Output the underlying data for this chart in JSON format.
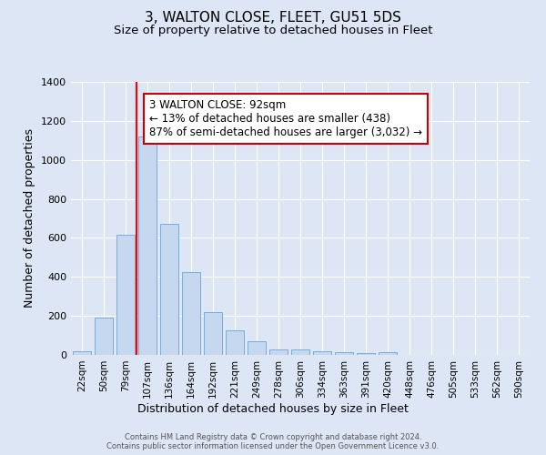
{
  "title": "3, WALTON CLOSE, FLEET, GU51 5DS",
  "subtitle": "Size of property relative to detached houses in Fleet",
  "xlabel": "Distribution of detached houses by size in Fleet",
  "ylabel": "Number of detached properties",
  "categories": [
    "22sqm",
    "50sqm",
    "79sqm",
    "107sqm",
    "136sqm",
    "164sqm",
    "192sqm",
    "221sqm",
    "249sqm",
    "278sqm",
    "306sqm",
    "334sqm",
    "363sqm",
    "391sqm",
    "420sqm",
    "448sqm",
    "476sqm",
    "505sqm",
    "533sqm",
    "562sqm",
    "590sqm"
  ],
  "values": [
    18,
    190,
    615,
    1120,
    670,
    425,
    218,
    128,
    72,
    30,
    28,
    20,
    15,
    10,
    15,
    0,
    0,
    0,
    0,
    0,
    0
  ],
  "bar_color": "#c5d8f0",
  "bar_edge_color": "#7aabda",
  "red_line_index": 2,
  "annotation_text": "3 WALTON CLOSE: 92sqm\n← 13% of detached houses are smaller (438)\n87% of semi-detached houses are larger (3,032) →",
  "annotation_box_color": "#ffffff",
  "annotation_box_edge": "#cc0000",
  "ylim": [
    0,
    1400
  ],
  "yticks": [
    0,
    200,
    400,
    600,
    800,
    1000,
    1200,
    1400
  ],
  "footer_line1": "Contains HM Land Registry data © Crown copyright and database right 2024.",
  "footer_line2": "Contains public sector information licensed under the Open Government Licence v3.0.",
  "background_color": "#dce6f5",
  "plot_bg_color": "#dce6f5",
  "grid_color": "#ffffff",
  "title_fontsize": 11,
  "subtitle_fontsize": 9.5,
  "xlabel_fontsize": 9,
  "ylabel_fontsize": 9,
  "annotation_fontsize": 8.5
}
